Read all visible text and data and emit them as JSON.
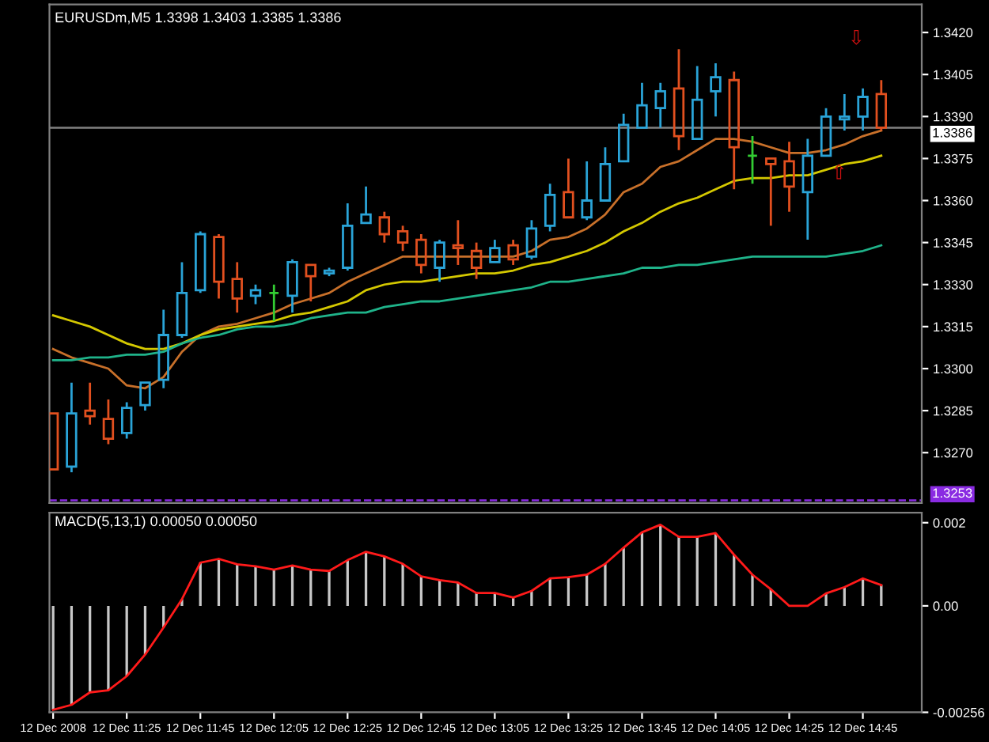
{
  "chart_data": [
    {
      "type": "candlestick",
      "title": "EURUSDm,M5 1.3398 1.3403 1.3385 1.3386",
      "x": [
        "2008-12-12T11:05",
        "2008-12-12T11:10",
        "2008-12-12T11:15",
        "2008-12-12T11:20",
        "2008-12-12T11:25",
        "2008-12-12T11:30",
        "2008-12-12T11:35",
        "2008-12-12T11:40",
        "2008-12-12T11:45",
        "2008-12-12T11:50",
        "2008-12-12T11:55",
        "2008-12-12T12:00",
        "2008-12-12T12:05",
        "2008-12-12T12:10",
        "2008-12-12T12:15",
        "2008-12-12T12:20",
        "2008-12-12T12:25",
        "2008-12-12T12:30",
        "2008-12-12T12:35",
        "2008-12-12T12:40",
        "2008-12-12T12:45",
        "2008-12-12T12:50",
        "2008-12-12T12:55",
        "2008-12-12T13:00",
        "2008-12-12T13:05",
        "2008-12-12T13:10",
        "2008-12-12T13:15",
        "2008-12-12T13:20",
        "2008-12-12T13:25",
        "2008-12-12T13:30",
        "2008-12-12T13:35",
        "2008-12-12T13:40",
        "2008-12-12T13:45",
        "2008-12-12T13:50",
        "2008-12-12T13:55",
        "2008-12-12T14:00",
        "2008-12-12T14:05",
        "2008-12-12T14:10",
        "2008-12-12T14:15",
        "2008-12-12T14:20",
        "2008-12-12T14:25",
        "2008-12-12T14:30",
        "2008-12-12T14:35",
        "2008-12-12T14:40",
        "2008-12-12T14:45",
        "2008-12-12T14:50"
      ],
      "ohlc": [
        [
          1.3284,
          1.3284,
          1.3264,
          1.3264
        ],
        [
          1.3265,
          1.3295,
          1.3263,
          1.3284
        ],
        [
          1.3285,
          1.3295,
          1.328,
          1.3283
        ],
        [
          1.3282,
          1.3289,
          1.3273,
          1.3275
        ],
        [
          1.3277,
          1.3288,
          1.3275,
          1.3286
        ],
        [
          1.3287,
          1.3295,
          1.3285,
          1.3295
        ],
        [
          1.3296,
          1.3321,
          1.3293,
          1.3312
        ],
        [
          1.3312,
          1.3338,
          1.3311,
          1.3327
        ],
        [
          1.3328,
          1.3349,
          1.3327,
          1.3348
        ],
        [
          1.3347,
          1.3348,
          1.3325,
          1.3331
        ],
        [
          1.3332,
          1.3338,
          1.332,
          1.3325
        ],
        [
          1.3326,
          1.333,
          1.3323,
          1.3328
        ],
        [
          1.3327,
          1.333,
          1.3317,
          1.3327
        ],
        [
          1.3326,
          1.3339,
          1.332,
          1.3338
        ],
        [
          1.3337,
          1.3337,
          1.3324,
          1.3333
        ],
        [
          1.3334,
          1.3336,
          1.3333,
          1.3335
        ],
        [
          1.3336,
          1.3359,
          1.3335,
          1.3351
        ],
        [
          1.3352,
          1.3365,
          1.3352,
          1.3355
        ],
        [
          1.3354,
          1.3356,
          1.3345,
          1.3348
        ],
        [
          1.3349,
          1.3351,
          1.3342,
          1.3345
        ],
        [
          1.3346,
          1.3348,
          1.3334,
          1.3337
        ],
        [
          1.3336,
          1.3346,
          1.3331,
          1.3345
        ],
        [
          1.3344,
          1.3353,
          1.3337,
          1.3343
        ],
        [
          1.3342,
          1.3345,
          1.3332,
          1.3336
        ],
        [
          1.3338,
          1.3346,
          1.3338,
          1.3343
        ],
        [
          1.3344,
          1.3346,
          1.3337,
          1.3339
        ],
        [
          1.334,
          1.3353,
          1.3339,
          1.335
        ],
        [
          1.3351,
          1.3366,
          1.3349,
          1.3362
        ],
        [
          1.3363,
          1.3375,
          1.3354,
          1.3354
        ],
        [
          1.3354,
          1.3374,
          1.3353,
          1.336
        ],
        [
          1.336,
          1.3379,
          1.336,
          1.3373
        ],
        [
          1.3374,
          1.3391,
          1.3374,
          1.3387
        ],
        [
          1.3386,
          1.3402,
          1.3386,
          1.3394
        ],
        [
          1.3393,
          1.3402,
          1.3386,
          1.3399
        ],
        [
          1.34,
          1.3414,
          1.3378,
          1.3383
        ],
        [
          1.3382,
          1.3408,
          1.3382,
          1.3396
        ],
        [
          1.3399,
          1.3409,
          1.339,
          1.3404
        ],
        [
          1.3403,
          1.3406,
          1.3364,
          1.3379
        ],
        [
          1.3376,
          1.3383,
          1.3366,
          1.3376
        ],
        [
          1.3375,
          1.3375,
          1.3351,
          1.3373
        ],
        [
          1.3374,
          1.3381,
          1.3356,
          1.3365
        ],
        [
          1.3363,
          1.3382,
          1.3346,
          1.3376
        ],
        [
          1.3376,
          1.3393,
          1.3376,
          1.339
        ],
        [
          1.3389,
          1.3398,
          1.3385,
          1.339
        ],
        [
          1.339,
          1.34,
          1.3385,
          1.3397
        ],
        [
          1.3398,
          1.3403,
          1.3385,
          1.3386
        ]
      ],
      "colors": [
        "#e2501f",
        "#2aa4d8",
        "#e2501f",
        "#e2501f",
        "#2aa4d8",
        "#2aa4d8",
        "#2aa4d8",
        "#2aa4d8",
        "#2aa4d8",
        "#e2501f",
        "#e2501f",
        "#2aa4d8",
        "#33cc33",
        "#2aa4d8",
        "#e2501f",
        "#2aa4d8",
        "#2aa4d8",
        "#2aa4d8",
        "#e2501f",
        "#e2501f",
        "#e2501f",
        "#2aa4d8",
        "#e2501f",
        "#e2501f",
        "#2aa4d8",
        "#e2501f",
        "#2aa4d8",
        "#2aa4d8",
        "#e2501f",
        "#2aa4d8",
        "#2aa4d8",
        "#2aa4d8",
        "#2aa4d8",
        "#2aa4d8",
        "#e2501f",
        "#2aa4d8",
        "#2aa4d8",
        "#e2501f",
        "#33cc33",
        "#e2501f",
        "#e2501f",
        "#2aa4d8",
        "#2aa4d8",
        "#2aa4d8",
        "#2aa4d8",
        "#e2501f"
      ],
      "series": [
        {
          "type": "line",
          "color": "#c8702a",
          "values": [
            1.3307,
            1.3304,
            1.3302,
            1.33,
            1.3294,
            1.3293,
            1.3297,
            1.3306,
            1.3312,
            1.3315,
            1.3316,
            1.3318,
            1.332,
            1.3323,
            1.3325,
            1.3327,
            1.3331,
            1.3334,
            1.3337,
            1.334,
            1.334,
            1.334,
            1.334,
            1.334,
            1.334,
            1.334,
            1.3342,
            1.3346,
            1.3347,
            1.335,
            1.3355,
            1.3363,
            1.3366,
            1.3372,
            1.3374,
            1.3378,
            1.3382,
            1.3382,
            1.3381,
            1.3379,
            1.3377,
            1.3377,
            1.3378,
            1.338,
            1.3383,
            1.3385
          ]
        },
        {
          "type": "line",
          "color": "#d4c800",
          "values": [
            1.3319,
            1.3317,
            1.3315,
            1.3312,
            1.3309,
            1.3307,
            1.3307,
            1.3309,
            1.3312,
            1.3314,
            1.3315,
            1.3316,
            1.3317,
            1.3319,
            1.332,
            1.3322,
            1.3324,
            1.3328,
            1.333,
            1.3331,
            1.3331,
            1.3332,
            1.3333,
            1.3334,
            1.3334,
            1.3335,
            1.3337,
            1.3338,
            1.334,
            1.3342,
            1.3345,
            1.3349,
            1.3352,
            1.3356,
            1.3359,
            1.3361,
            1.3364,
            1.3367,
            1.3368,
            1.3368,
            1.3369,
            1.3369,
            1.3371,
            1.3373,
            1.3374,
            1.3376
          ]
        },
        {
          "type": "line",
          "color": "#1fb38a",
          "values": [
            1.3303,
            1.3303,
            1.3304,
            1.3304,
            1.3305,
            1.3305,
            1.3306,
            1.3309,
            1.3311,
            1.3312,
            1.3314,
            1.3315,
            1.3315,
            1.3316,
            1.3318,
            1.3319,
            1.332,
            1.332,
            1.3322,
            1.3323,
            1.3324,
            1.3324,
            1.3325,
            1.3326,
            1.3327,
            1.3328,
            1.3329,
            1.3331,
            1.3331,
            1.3332,
            1.3333,
            1.3334,
            1.3336,
            1.3336,
            1.3337,
            1.3337,
            1.3338,
            1.3339,
            1.334,
            1.334,
            1.334,
            1.334,
            1.334,
            1.3341,
            1.3342,
            1.3344
          ]
        }
      ],
      "xlim": [
        "2008-12-12T11:04",
        "2008-12-12T15:01"
      ],
      "ylim": [
        1.3252,
        1.343
      ],
      "yticks": [
        {
          "value": 1.342,
          "label": "1.3420"
        },
        {
          "value": 1.3405,
          "label": "1.3405"
        },
        {
          "value": 1.339,
          "label": "1.3390"
        },
        {
          "value": 1.3375,
          "label": "1.3375"
        },
        {
          "value": 1.336,
          "label": "1.3360"
        },
        {
          "value": 1.3345,
          "label": "1.3345"
        },
        {
          "value": 1.333,
          "label": "1.3330"
        },
        {
          "value": 1.3315,
          "label": "1.3315"
        },
        {
          "value": 1.33,
          "label": "1.3300"
        },
        {
          "value": 1.3285,
          "label": "1.3285"
        },
        {
          "value": 1.327,
          "label": "1.3270"
        }
      ],
      "tick_labels": "y",
      "ref_lines": [
        {
          "axis": "y",
          "value": 1.3386,
          "label": "1.3386",
          "color": "#808080"
        },
        {
          "axis": "y",
          "value": 1.3253,
          "label": "1.3253",
          "color": "#8a2be2",
          "line_style": "dashed"
        }
      ],
      "annotations": [
        "⇩",
        "⇧"
      ]
    },
    {
      "type": "bar",
      "title": "MACD(5,13,1) 0.00050 0.00050",
      "x": [
        "2008-12-12T11:05",
        "2008-12-12T11:10",
        "2008-12-12T11:15",
        "2008-12-12T11:20",
        "2008-12-12T11:25",
        "2008-12-12T11:30",
        "2008-12-12T11:35",
        "2008-12-12T11:40",
        "2008-12-12T11:45",
        "2008-12-12T11:50",
        "2008-12-12T11:55",
        "2008-12-12T12:00",
        "2008-12-12T12:05",
        "2008-12-12T12:10",
        "2008-12-12T12:15",
        "2008-12-12T12:20",
        "2008-12-12T12:25",
        "2008-12-12T12:30",
        "2008-12-12T12:35",
        "2008-12-12T12:40",
        "2008-12-12T12:45",
        "2008-12-12T12:50",
        "2008-12-12T12:55",
        "2008-12-12T13:00",
        "2008-12-12T13:05",
        "2008-12-12T13:10",
        "2008-12-12T13:15",
        "2008-12-12T13:20",
        "2008-12-12T13:25",
        "2008-12-12T13:30",
        "2008-12-12T13:35",
        "2008-12-12T13:40",
        "2008-12-12T13:45",
        "2008-12-12T13:50",
        "2008-12-12T13:55",
        "2008-12-12T14:00",
        "2008-12-12T14:05",
        "2008-12-12T14:10",
        "2008-12-12T14:15",
        "2008-12-12T14:20",
        "2008-12-12T14:25",
        "2008-12-12T14:30",
        "2008-12-12T14:35",
        "2008-12-12T14:40",
        "2008-12-12T14:45",
        "2008-12-12T14:50"
      ],
      "series": [
        {
          "color": "#c8c8c8",
          "values": [
            -0.0025,
            -0.00238,
            -0.00208,
            -0.00203,
            -0.00169,
            -0.00117,
            -0.00052,
            0.00016,
            0.00104,
            0.00113,
            0.001,
            0.00095,
            0.00087,
            0.00097,
            0.00087,
            0.00084,
            0.0011,
            0.0013,
            0.00119,
            0.00101,
            0.00071,
            0.00062,
            0.00056,
            0.00031,
            0.00031,
            0.0002,
            0.00036,
            0.00066,
            0.00069,
            0.00075,
            0.00101,
            0.0014,
            0.00177,
            0.00195,
            0.00166,
            0.00166,
            0.00175,
            0.00123,
            0.00075,
            0.0004,
            0,
            0,
            0.0003,
            0.00045,
            0.00066,
            0.0005
          ]
        },
        {
          "type": "line",
          "color": "#ff1a1a",
          "values": [
            -0.0025,
            -0.00238,
            -0.00208,
            -0.00203,
            -0.00169,
            -0.00117,
            -0.00052,
            0.00016,
            0.00104,
            0.00113,
            0.001,
            0.00095,
            0.00087,
            0.00097,
            0.00087,
            0.00084,
            0.0011,
            0.0013,
            0.00119,
            0.00101,
            0.00071,
            0.00062,
            0.00056,
            0.00031,
            0.00031,
            0.0002,
            0.00036,
            0.00066,
            0.00069,
            0.00075,
            0.00101,
            0.0014,
            0.00177,
            0.00195,
            0.00166,
            0.00166,
            0.00175,
            0.00123,
            0.00075,
            0.0004,
            0,
            0,
            0.0003,
            0.00045,
            0.00066,
            0.0005
          ]
        }
      ],
      "xlim": [
        "2008-12-12T11:04",
        "2008-12-12T15:01"
      ],
      "xticks": [
        {
          "value": "2008-12-12T11:05",
          "label": "12 Dec 2008"
        },
        {
          "value": "2008-12-12T11:25",
          "label": "12 Dec 11:25"
        },
        {
          "value": "2008-12-12T11:45",
          "label": "12 Dec 11:45"
        },
        {
          "value": "2008-12-12T12:05",
          "label": "12 Dec 12:05"
        },
        {
          "value": "2008-12-12T12:25",
          "label": "12 Dec 12:25"
        },
        {
          "value": "2008-12-12T12:45",
          "label": "12 Dec 12:45"
        },
        {
          "value": "2008-12-12T13:05",
          "label": "12 Dec 13:05"
        },
        {
          "value": "2008-12-12T13:25",
          "label": "12 Dec 13:25"
        },
        {
          "value": "2008-12-12T13:45",
          "label": "12 Dec 13:45"
        },
        {
          "value": "2008-12-12T14:05",
          "label": "12 Dec 14:05"
        },
        {
          "value": "2008-12-12T14:25",
          "label": "12 Dec 14:25"
        },
        {
          "value": "2008-12-12T14:45",
          "label": "12 Dec 14:45"
        }
      ],
      "ylim": [
        -0.00256,
        0.00224
      ],
      "yticks": [
        {
          "value": 0.002,
          "label": "0.002"
        },
        {
          "value": 0,
          "label": "0.00"
        },
        {
          "value": -0.00256,
          "label": "-0.00256"
        }
      ]
    }
  ]
}
